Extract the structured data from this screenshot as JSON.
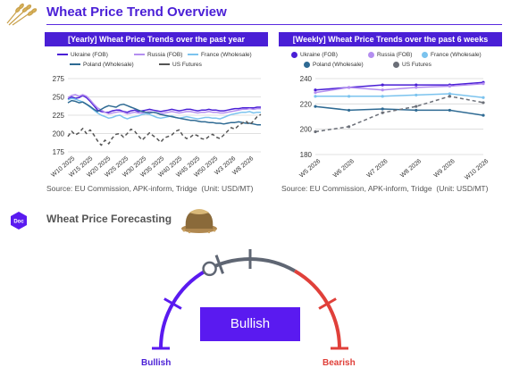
{
  "header": {
    "title": "Wheat Price Trend Overview",
    "accent": "#4a1fd6",
    "logo_icon": "wheat-icon"
  },
  "chart_data": [
    {
      "type": "line",
      "title": "[Yearly] Wheat Price Trends over the past year",
      "xlabel": "",
      "ylabel": "",
      "ylim": [
        175,
        275
      ],
      "yticks": [
        175,
        200,
        225,
        250,
        275
      ],
      "grid": true,
      "legend": "top",
      "tick_labels": [
        "W10 2025",
        "W15 2025",
        "W20 2025",
        "W25 2025",
        "W30 2025",
        "W35 2025",
        "W40 2025",
        "W45 2025",
        "W50 2025",
        "W3 2026",
        "W8 2026"
      ],
      "series": [
        {
          "name": "Ukraine (FOB)",
          "color": "#4a1fd6",
          "dash": false,
          "values": [
            247,
            250,
            248,
            249,
            252,
            249,
            244,
            238,
            232,
            230,
            229,
            229,
            231,
            232,
            232,
            230,
            229,
            231,
            232,
            230,
            231,
            232,
            233,
            232,
            231,
            230,
            231,
            232,
            233,
            232,
            231,
            232,
            233,
            233,
            232,
            231,
            232,
            232,
            233,
            232,
            232,
            231,
            231,
            232,
            233,
            234,
            234,
            235,
            235,
            235,
            235,
            236,
            236
          ]
        },
        {
          "name": "Russia (FOB)",
          "color": "#b48ef0",
          "dash": false,
          "values": [
            249,
            252,
            253,
            251,
            253,
            251,
            246,
            240,
            235,
            232,
            229,
            227,
            228,
            229,
            230,
            229,
            227,
            228,
            229,
            228,
            228,
            229,
            230,
            229,
            228,
            227,
            228,
            229,
            230,
            229,
            228,
            229,
            230,
            230,
            229,
            228,
            229,
            229,
            230,
            229,
            229,
            228,
            228,
            229,
            230,
            231,
            232,
            233,
            233,
            234,
            233,
            234,
            234
          ]
        },
        {
          "name": "France (Wholesale)",
          "color": "#7bc3ee",
          "dash": false,
          "values": [
            246,
            248,
            247,
            245,
            243,
            240,
            236,
            232,
            228,
            225,
            223,
            221,
            222,
            224,
            225,
            222,
            220,
            222,
            223,
            224,
            226,
            227,
            226,
            224,
            222,
            221,
            222,
            223,
            224,
            222,
            221,
            222,
            223,
            222,
            221,
            220,
            221,
            222,
            222,
            221,
            221,
            220,
            222,
            224,
            226,
            227,
            228,
            229,
            229,
            230,
            228,
            229,
            229
          ]
        },
        {
          "name": "Poland (Wholesale)",
          "color": "#2e6a93",
          "dash": false,
          "values": [
            242,
            245,
            244,
            242,
            243,
            240,
            237,
            233,
            230,
            233,
            236,
            238,
            237,
            236,
            239,
            240,
            238,
            236,
            234,
            232,
            230,
            229,
            228,
            229,
            228,
            226,
            225,
            224,
            223,
            222,
            221,
            220,
            219,
            218,
            218,
            217,
            216,
            216,
            215,
            215,
            214,
            214,
            213,
            214,
            215,
            215,
            216,
            215,
            214,
            214,
            213,
            212,
            212
          ]
        },
        {
          "name": "US Futures",
          "color": "#555555",
          "dash": true,
          "values": [
            196,
            203,
            198,
            201,
            207,
            200,
            205,
            198,
            190,
            184,
            191,
            186,
            194,
            199,
            200,
            195,
            200,
            206,
            203,
            197,
            191,
            196,
            201,
            197,
            193,
            188,
            194,
            196,
            198,
            203,
            205,
            197,
            193,
            195,
            199,
            197,
            193,
            192,
            196,
            199,
            195,
            193,
            198,
            203,
            208,
            206,
            211,
            214,
            217,
            212,
            217,
            223,
            226
          ]
        }
      ],
      "source": "Source: EU Commission, APK-inform, Tridge",
      "unit": "(Unit: USD/MT)"
    },
    {
      "type": "line",
      "title": "[Weekly] Wheat Price Trends over the past 6 weeks",
      "xlabel": "",
      "ylabel": "",
      "ylim": [
        180,
        240
      ],
      "yticks": [
        180,
        200,
        220,
        240
      ],
      "grid": true,
      "legend": "top",
      "categories": [
        "W5 2026",
        "W6 2026",
        "W7 2026",
        "W8 2026",
        "W9 2026",
        "W10 2026"
      ],
      "series": [
        {
          "name": "Ukraine (FOB)",
          "color": "#4a1fd6",
          "dash": false,
          "values": [
            231,
            233,
            235,
            235,
            235,
            237
          ]
        },
        {
          "name": "Russia (FOB)",
          "color": "#b48ef0",
          "dash": false,
          "values": [
            229,
            233,
            231,
            233,
            234,
            236
          ]
        },
        {
          "name": "France (Wholesale)",
          "color": "#7bc3ee",
          "dash": false,
          "values": [
            226,
            226,
            226,
            227,
            228,
            225
          ]
        },
        {
          "name": "Poland (Wholesale)",
          "color": "#2e6a93",
          "dash": false,
          "values": [
            218,
            215,
            216,
            215,
            215,
            211
          ]
        },
        {
          "name": "US Futures",
          "color": "#6b6f78",
          "dash": true,
          "values": [
            198,
            202,
            213,
            218,
            226,
            221
          ]
        }
      ],
      "source": "Source: EU Commission, APK-inform, Tridge",
      "unit": "(Unit: USD/MT)"
    }
  ],
  "forecast": {
    "badge": "Doc",
    "title": "Wheat Price Forecasting",
    "image_icon": "wheat-sack-icon",
    "gauge": {
      "label": "Bullish",
      "value": 0.35,
      "left_label": "Bullish",
      "right_label": "Bearish",
      "colors": {
        "bullish": "#5a1af0",
        "neutral": "#5f6673",
        "bearish": "#e0403a"
      }
    }
  }
}
